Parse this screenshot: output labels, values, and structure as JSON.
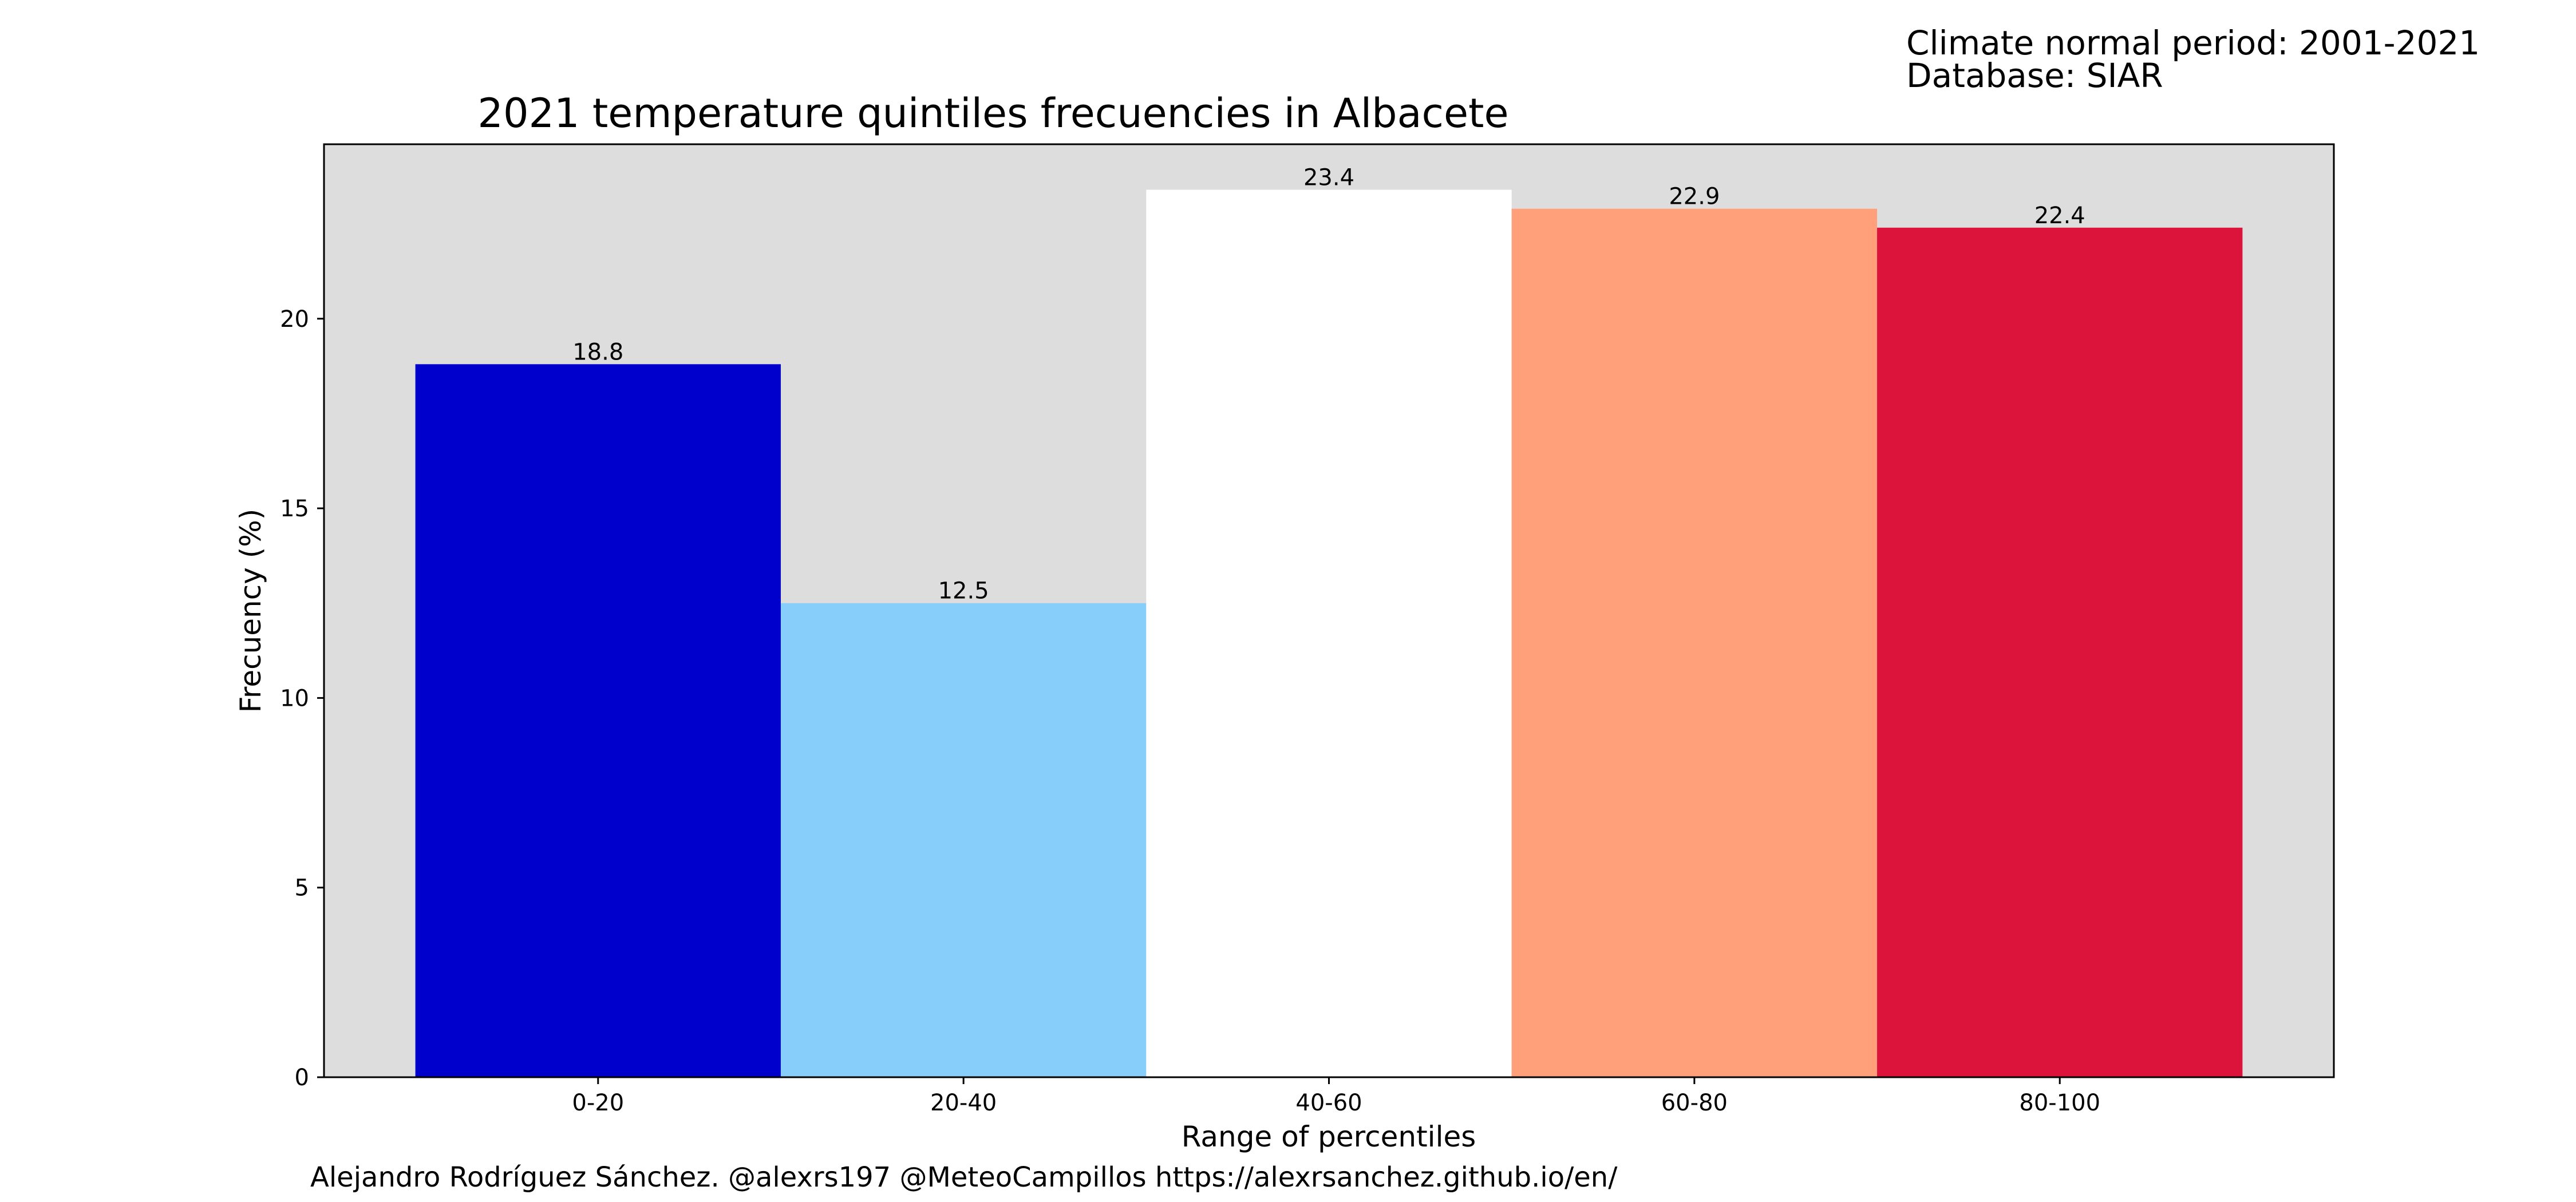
{
  "header_info": {
    "line1": "Climate normal period: 2001-2021",
    "line2": "Database: SIAR"
  },
  "footer": {
    "credit": "Alejandro Rodríguez Sánchez. @alexrs197 @MeteoCampillos   https://alexrsanchez.github.io/en/"
  },
  "colors": {
    "plot_background": "#dddddd",
    "axis": "#000000"
  },
  "chart_data": {
    "type": "bar",
    "title": "2021 temperature quintiles frecuencies in Albacete",
    "xlabel": "Range of percentiles",
    "ylabel": "Frecuency (%)",
    "categories": [
      "0-20",
      "20-40",
      "40-60",
      "60-80",
      "80-100"
    ],
    "values": [
      18.8,
      12.5,
      23.4,
      22.9,
      22.4
    ],
    "value_labels": [
      "18.8",
      "12.5",
      "23.4",
      "22.9",
      "22.4"
    ],
    "bar_colors": [
      "#0000cd",
      "#87cefa",
      "#ffffff",
      "#ffa07a",
      "#dc143c"
    ],
    "yticks": [
      0,
      5,
      10,
      15,
      20
    ],
    "ylim": [
      0,
      24.6
    ],
    "grid": false,
    "legend": "none"
  }
}
